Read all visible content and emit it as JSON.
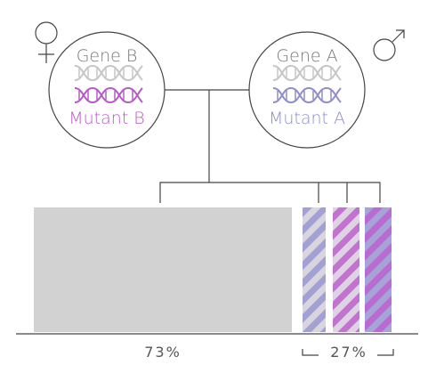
{
  "left_parent": {
    "gene": "Gene B",
    "mutant": "Mutant B"
  },
  "right_parent": {
    "gene": "Gene A",
    "mutant": "Mutant A"
  },
  "outcome": {
    "normal_share": "73%",
    "mutant_share": "27%"
  }
}
